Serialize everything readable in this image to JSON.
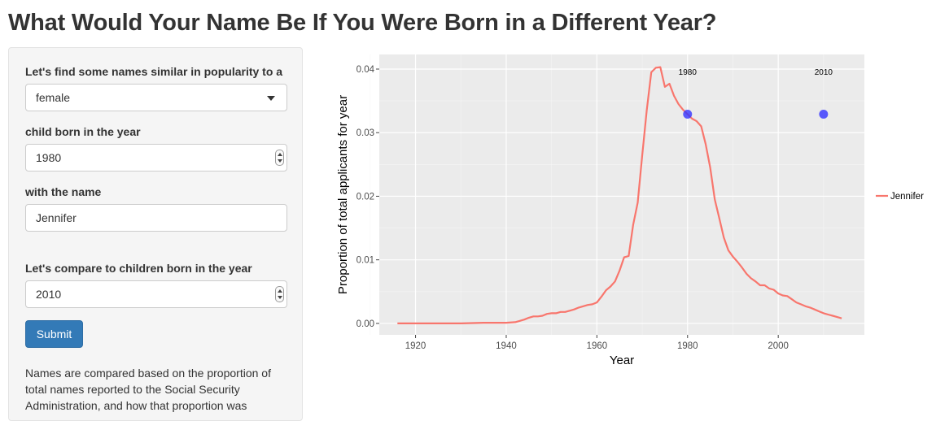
{
  "page": {
    "title": "What Would Your Name Be If You Were Born in a Different Year?"
  },
  "sidebar": {
    "intro_label": "Let's find some names similar in popularity to a",
    "sex_select": {
      "value": "female"
    },
    "birth_year_label": "child born in the year",
    "birth_year": {
      "value": "1980"
    },
    "name_label": "with the name",
    "name_input": {
      "value": "Jennifer"
    },
    "compare_label": "Let's compare to children born in the year",
    "compare_year": {
      "value": "2010"
    },
    "submit_label": "Submit",
    "note_text": "Names are compared based on the proportion of total names reported to the Social Security Administration, and how that proportion was"
  },
  "colors": {
    "line": "#F8766D",
    "point": "#3333FF",
    "panel_bg": "#EBEBEB",
    "button": "#337ab7"
  },
  "chart_data": {
    "type": "line",
    "xlabel": "Year",
    "ylabel": "Proportion of total applicants for year",
    "xlim": [
      1912,
      2019
    ],
    "ylim": [
      -0.0018,
      0.0423
    ],
    "xticks": [
      1920,
      1940,
      1960,
      1980,
      2000
    ],
    "yticks": [
      0.0,
      0.01,
      0.02,
      0.03,
      0.04
    ],
    "ytick_labels": [
      "0.00",
      "0.01",
      "0.02",
      "0.03",
      "0.04"
    ],
    "grid": true,
    "legend_position": "right",
    "series": [
      {
        "name": "Jennifer",
        "x": [
          1916,
          1920,
          1925,
          1930,
          1935,
          1938,
          1940,
          1942,
          1943,
          1944,
          1945,
          1946,
          1947,
          1948,
          1949,
          1950,
          1951,
          1952,
          1953,
          1954,
          1955,
          1956,
          1957,
          1958,
          1959,
          1960,
          1961,
          1962,
          1963,
          1964,
          1965,
          1966,
          1967,
          1968,
          1969,
          1970,
          1971,
          1972,
          1973,
          1974,
          1975,
          1976,
          1977,
          1978,
          1979,
          1980,
          1981,
          1982,
          1983,
          1984,
          1985,
          1986,
          1987,
          1988,
          1989,
          1990,
          1991,
          1992,
          1993,
          1994,
          1995,
          1996,
          1997,
          1998,
          1999,
          2000,
          2001,
          2002,
          2003,
          2004,
          2005,
          2006,
          2007,
          2008,
          2009,
          2010,
          2011,
          2012,
          2013,
          2014
        ],
        "y": [
          0.0,
          0.0,
          0.0,
          0.0,
          0.0001,
          0.0001,
          0.0001,
          0.0002,
          0.0004,
          0.0006,
          0.0009,
          0.0011,
          0.0011,
          0.0012,
          0.0015,
          0.0016,
          0.0016,
          0.0018,
          0.0018,
          0.002,
          0.0022,
          0.0025,
          0.0027,
          0.0029,
          0.003,
          0.0033,
          0.0042,
          0.0052,
          0.0058,
          0.0066,
          0.0083,
          0.0104,
          0.0106,
          0.0155,
          0.019,
          0.0265,
          0.0335,
          0.0395,
          0.0402,
          0.0403,
          0.0372,
          0.0377,
          0.0358,
          0.0345,
          0.0336,
          0.0329,
          0.0322,
          0.0318,
          0.031,
          0.0282,
          0.0245,
          0.0195,
          0.0165,
          0.0135,
          0.0115,
          0.0105,
          0.0097,
          0.0088,
          0.0078,
          0.0071,
          0.0066,
          0.006,
          0.006,
          0.0055,
          0.0053,
          0.0047,
          0.0044,
          0.0043,
          0.0038,
          0.0033,
          0.003,
          0.0027,
          0.0025,
          0.0022,
          0.0019,
          0.0016,
          0.0014,
          0.0012,
          0.001,
          0.0008
        ]
      }
    ],
    "points": [
      {
        "x": 1980,
        "y": 0.0329,
        "label": "1980"
      },
      {
        "x": 2010,
        "y": 0.0329,
        "label": "2010"
      }
    ]
  }
}
